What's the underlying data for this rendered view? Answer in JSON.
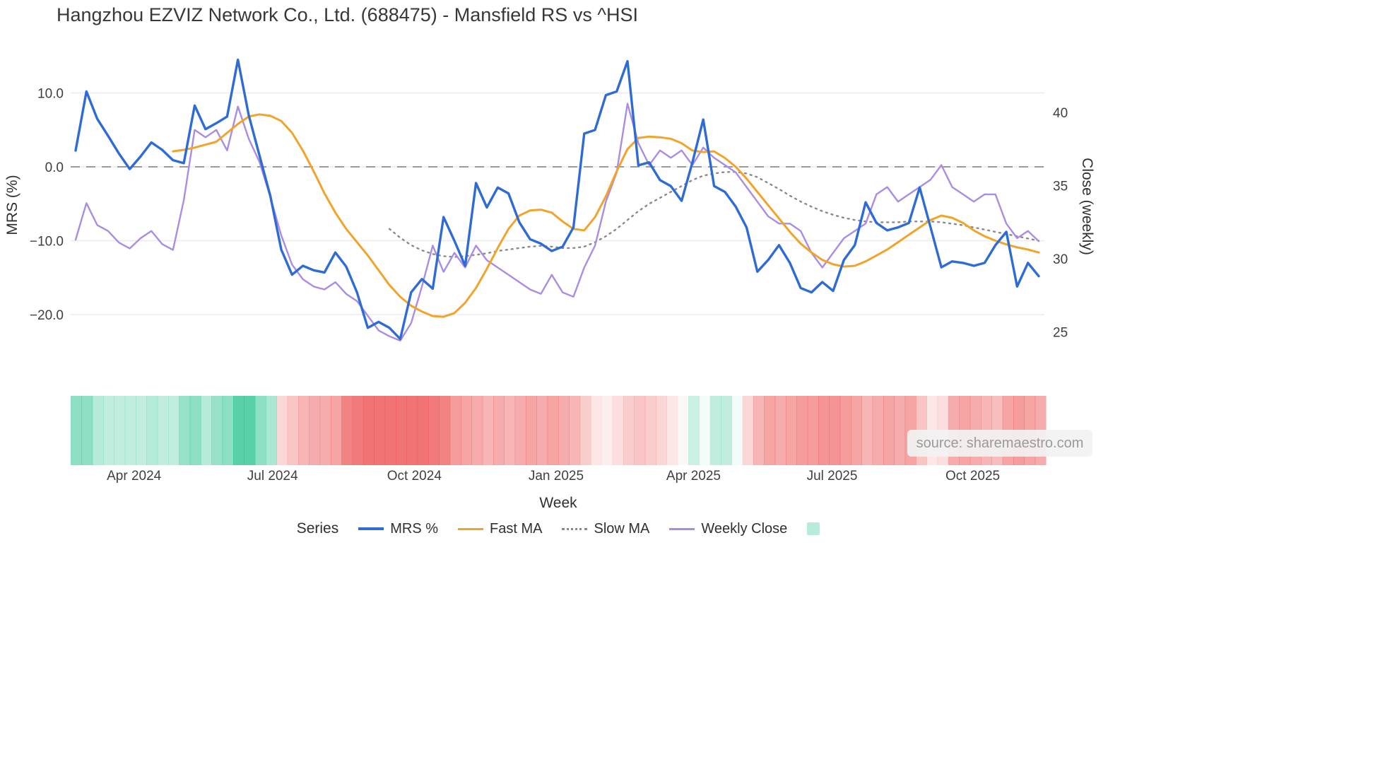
{
  "chart_data": {
    "type": "line",
    "title": "Hangzhou EZVIZ Network Co., Ltd. (688475) - Mansfield RS vs ^HSI",
    "xlabel": "Week",
    "left_axis": {
      "label": "MRS (%)",
      "range": [
        -27.2,
        16.7
      ],
      "ticks": [
        {
          "label": "10.0",
          "value": 10
        },
        {
          "label": "0.0",
          "value": 0
        },
        {
          "label": "−10.0",
          "value": -10
        },
        {
          "label": "−20.0",
          "value": -20
        }
      ]
    },
    "right_axis": {
      "label": "Close (weekly)",
      "range": [
        23.5,
        41.2
      ],
      "ticks": [
        {
          "label": "40",
          "value": 40
        },
        {
          "label": "35",
          "value": 35
        },
        {
          "label": "30",
          "value": 30
        },
        {
          "label": "25",
          "value": 25
        }
      ]
    },
    "x_axis": {
      "ticks": [
        {
          "label": "Apr 2024",
          "index": 5.4
        },
        {
          "label": "Jul 2024",
          "index": 18.2
        },
        {
          "label": "Oct 2024",
          "index": 31.3
        },
        {
          "label": "Jan 2025",
          "index": 44.4
        },
        {
          "label": "Apr 2025",
          "index": 57.1
        },
        {
          "label": "Jul 2025",
          "index": 69.9
        },
        {
          "label": "Oct 2025",
          "index": 82.9
        }
      ]
    },
    "zero_line": {
      "value": 0,
      "color": "#9b9b9b"
    },
    "grid_color": "#ebebeb",
    "series": [
      {
        "name": "MRS %",
        "axis": "left",
        "color": "#2e6bd6",
        "width": 3.4,
        "style": "solid",
        "values": [
          2.2,
          10.2,
          6.5,
          4.2,
          1.8,
          -0.3,
          1.4,
          3.3,
          2.3,
          0.9,
          0.5,
          8.3,
          5.1,
          5.9,
          6.8,
          14.5,
          7.0,
          1.5,
          -4.0,
          -11.2,
          -14.6,
          -13.4,
          -14.0,
          -14.3,
          -11.6,
          -13.5,
          -17.0,
          -21.8,
          -21.0,
          -21.8,
          -23.3,
          -17.0,
          -15.2,
          -16.5,
          -6.8,
          -10.0,
          -13.4,
          -2.2,
          -5.5,
          -2.8,
          -3.6,
          -7.5,
          -9.8,
          -10.4,
          -11.4,
          -10.8,
          -8.2,
          4.5,
          5.0,
          9.7,
          10.2,
          14.3,
          0.2,
          0.6,
          -1.8,
          -2.6,
          -4.6,
          0.6,
          6.4,
          -2.6,
          -3.4,
          -5.4,
          -8.2,
          -14.2,
          -12.6,
          -10.6,
          -13.0,
          -16.4,
          -17.0,
          -15.6,
          -16.8,
          -12.6,
          -10.6,
          -4.8,
          -7.6,
          -8.6,
          -8.2,
          -7.6,
          -2.8,
          -8.2,
          -13.6,
          -12.8,
          -13.0,
          -13.4,
          -13.0,
          -10.6,
          -8.8,
          -16.2,
          -13.0,
          -14.8
        ]
      },
      {
        "name": "Fast MA",
        "axis": "left",
        "color": "#f0a42c",
        "width": 3.0,
        "style": "solid",
        "values": [
          null,
          null,
          null,
          null,
          null,
          null,
          null,
          null,
          null,
          2.1,
          2.3,
          2.6,
          3.0,
          3.4,
          4.6,
          5.8,
          6.8,
          7.1,
          6.9,
          6.2,
          4.6,
          2.2,
          -0.6,
          -3.6,
          -6.2,
          -8.4,
          -10.2,
          -12.0,
          -14.0,
          -16.0,
          -17.6,
          -18.8,
          -19.6,
          -20.2,
          -20.3,
          -19.8,
          -18.4,
          -16.4,
          -13.8,
          -11.0,
          -8.4,
          -6.6,
          -5.9,
          -5.8,
          -6.2,
          -7.4,
          -8.4,
          -8.6,
          -6.8,
          -4.0,
          -0.6,
          2.4,
          3.9,
          4.1,
          4.0,
          3.8,
          3.2,
          2.2,
          2.0,
          2.1,
          1.2,
          0.0,
          -1.6,
          -3.4,
          -5.2,
          -7.0,
          -8.8,
          -10.4,
          -11.6,
          -12.6,
          -13.2,
          -13.5,
          -13.4,
          -12.8,
          -12.0,
          -11.2,
          -10.2,
          -9.2,
          -8.2,
          -7.2,
          -6.6,
          -6.9,
          -7.6,
          -8.6,
          -9.4,
          -10.0,
          -10.5,
          -10.9,
          -11.2,
          -11.6
        ]
      },
      {
        "name": "Slow MA",
        "axis": "left",
        "color": "#8a8a8a",
        "width": 2.4,
        "style": "dotted",
        "values": [
          null,
          null,
          null,
          null,
          null,
          null,
          null,
          null,
          null,
          null,
          null,
          null,
          null,
          null,
          null,
          null,
          null,
          null,
          null,
          null,
          null,
          null,
          null,
          null,
          null,
          null,
          null,
          null,
          null,
          -8.4,
          -9.6,
          -10.6,
          -11.3,
          -11.8,
          -12.1,
          -12.2,
          -12.1,
          -11.9,
          -11.7,
          -11.4,
          -11.2,
          -11.0,
          -10.8,
          -10.7,
          -10.8,
          -11.0,
          -11.0,
          -10.8,
          -10.2,
          -9.4,
          -8.4,
          -7.2,
          -6.0,
          -5.0,
          -4.2,
          -3.4,
          -2.6,
          -1.8,
          -1.2,
          -0.9,
          -0.7,
          -0.7,
          -0.9,
          -1.4,
          -2.2,
          -3.0,
          -3.9,
          -4.7,
          -5.4,
          -6.0,
          -6.5,
          -6.9,
          -7.2,
          -7.4,
          -7.5,
          -7.5,
          -7.5,
          -7.4,
          -7.4,
          -7.4,
          -7.5,
          -7.7,
          -7.9,
          -8.2,
          -8.5,
          -8.8,
          -9.1,
          -9.4,
          -9.7,
          -10.0
        ]
      },
      {
        "name": "Weekly Close",
        "axis": "right",
        "color": "#aa8de2",
        "width": 2.4,
        "style": "solid",
        "values": [
          31.3,
          33.8,
          32.3,
          31.9,
          31.1,
          30.7,
          31.4,
          31.9,
          31.0,
          30.6,
          34.0,
          38.8,
          38.3,
          38.8,
          37.4,
          40.4,
          38.2,
          36.6,
          34.2,
          31.6,
          29.6,
          28.6,
          28.1,
          27.9,
          28.4,
          27.6,
          27.1,
          26.1,
          25.1,
          24.7,
          24.4,
          25.6,
          28.1,
          30.9,
          29.1,
          30.4,
          29.4,
          30.9,
          29.9,
          29.4,
          28.9,
          28.4,
          27.9,
          27.6,
          28.9,
          27.7,
          27.4,
          29.4,
          30.9,
          33.9,
          35.9,
          40.6,
          37.9,
          36.4,
          37.4,
          36.9,
          37.4,
          36.4,
          37.6,
          36.9,
          36.4,
          35.9,
          34.9,
          33.9,
          32.9,
          32.4,
          32.4,
          31.9,
          30.4,
          29.4,
          30.4,
          31.4,
          31.9,
          32.4,
          34.4,
          34.9,
          33.9,
          34.4,
          34.9,
          35.4,
          36.4,
          34.9,
          34.4,
          33.9,
          34.4,
          34.4,
          32.4,
          31.4,
          31.9,
          31.2
        ]
      }
    ],
    "heatmap": {
      "positive_color": "#2ec492",
      "negative_color": "#ee5a5a",
      "values": [
        0.55,
        0.55,
        0.35,
        0.3,
        0.3,
        0.3,
        0.3,
        0.35,
        0.3,
        0.3,
        0.5,
        0.55,
        0.35,
        0.5,
        0.55,
        0.8,
        0.8,
        0.55,
        0.4,
        -0.25,
        -0.35,
        -0.45,
        -0.5,
        -0.5,
        -0.55,
        -0.75,
        -0.8,
        -0.85,
        -0.85,
        -0.85,
        -0.85,
        -0.85,
        -0.85,
        -0.8,
        -0.75,
        -0.6,
        -0.55,
        -0.5,
        -0.45,
        -0.5,
        -0.45,
        -0.5,
        -0.55,
        -0.5,
        -0.55,
        -0.5,
        -0.45,
        -0.3,
        -0.15,
        -0.1,
        -0.2,
        -0.3,
        -0.35,
        -0.3,
        -0.25,
        -0.15,
        -0.05,
        0.25,
        0.05,
        0.3,
        0.3,
        0.05,
        -0.25,
        -0.45,
        -0.55,
        -0.5,
        -0.55,
        -0.6,
        -0.6,
        -0.65,
        -0.65,
        -0.6,
        -0.55,
        -0.45,
        -0.5,
        -0.55,
        -0.5,
        -0.55,
        -0.35,
        -0.15,
        -0.2,
        -0.5,
        -0.55,
        -0.5,
        -0.45,
        -0.4,
        -0.55,
        -0.6,
        -0.55,
        -0.5
      ]
    },
    "legend": {
      "title": "Series",
      "items": [
        {
          "label": "MRS %",
          "type": "line",
          "color": "#2e6bd6",
          "dash": "solid",
          "thickness": 4
        },
        {
          "label": "Fast MA",
          "type": "line",
          "color": "#f0a42c",
          "dash": "solid",
          "thickness": 3
        },
        {
          "label": "Slow MA",
          "type": "line",
          "color": "#8a8a8a",
          "dash": "dotted",
          "thickness": 3
        },
        {
          "label": "Weekly Close",
          "type": "line",
          "color": "#aa8de2",
          "dash": "solid",
          "thickness": 3
        },
        {
          "label": "",
          "type": "patch",
          "color": "#b9ecd8"
        }
      ]
    },
    "source": "source: sharemaestro.com"
  }
}
